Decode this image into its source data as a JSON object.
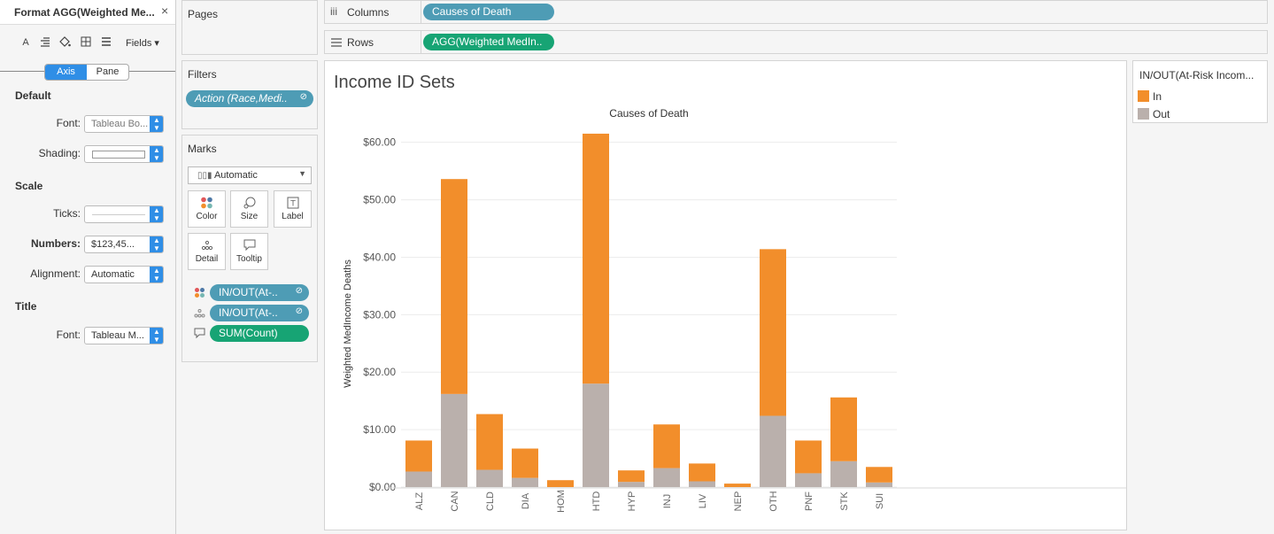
{
  "format_pane": {
    "title": "Format AGG(Weighted Me...",
    "close": "×",
    "toolbar_icons": [
      "font-icon",
      "align-icon",
      "shading-icon",
      "borders-icon",
      "lines-icon"
    ],
    "fields_label": "Fields ▾",
    "tabs": [
      "Axis",
      "Pane"
    ],
    "sections": {
      "default": "Default",
      "scale": "Scale",
      "title": "Title"
    },
    "font_label": "Font:",
    "font_value": "Tableau Bo...",
    "shading_label": "Shading:",
    "ticks_label": "Ticks:",
    "numbers_label": "Numbers:",
    "numbers_value": "$123,45...",
    "alignment_label": "Alignment:",
    "alignment_value": "Automatic",
    "title_font_label": "Font:",
    "title_font_value": "Tableau M..."
  },
  "pages": {
    "title": "Pages"
  },
  "filters": {
    "title": "Filters",
    "pill": "Action (Race,Medi..",
    "pill_icon": "⊘"
  },
  "marks": {
    "title": "Marks",
    "type": "Automatic",
    "buttons": [
      {
        "label": "Color",
        "icon": "color-icon"
      },
      {
        "label": "Size",
        "icon": "size-icon"
      },
      {
        "label": "Label",
        "icon": "label-icon"
      },
      {
        "label": "Detail",
        "icon": "detail-icon"
      },
      {
        "label": "Tooltip",
        "icon": "tooltip-icon"
      }
    ],
    "encodings": [
      {
        "label": "IN/OUT(At-..",
        "kind": "color"
      },
      {
        "label": "IN/OUT(At-..",
        "kind": "detail"
      },
      {
        "label": "SUM(Count)",
        "kind": "tooltip"
      }
    ]
  },
  "shelves": {
    "columns_label": "Columns",
    "columns_pill": "Causes of Death",
    "rows_label": "Rows",
    "rows_pill": "AGG(Weighted MedIn.."
  },
  "view": {
    "title": "Income ID Sets"
  },
  "legend": {
    "title": "IN/OUT(At-Risk Incom...",
    "items": [
      {
        "label": "In",
        "color": "#f28e2b"
      },
      {
        "label": "Out",
        "color": "#bab0ac"
      }
    ]
  },
  "chart_data": {
    "type": "bar",
    "stacked": true,
    "title": "Causes of Death",
    "xlabel": "",
    "ylabel": "Weighted MedIncome Deaths",
    "categories": [
      "ALZ",
      "CAN",
      "CLD",
      "DIA",
      "HOM",
      "HTD",
      "HYP",
      "INJ",
      "LIV",
      "NEP",
      "OTH",
      "PNF",
      "STK",
      "SUI"
    ],
    "series": [
      {
        "name": "Out",
        "color": "#bab0ac",
        "values": [
          2.7,
          16.2,
          3.0,
          1.6,
          0.0,
          18.0,
          0.9,
          3.3,
          1.0,
          0.0,
          12.4,
          2.4,
          4.5,
          0.8
        ]
      },
      {
        "name": "In",
        "color": "#f28e2b",
        "values": [
          5.4,
          37.4,
          9.7,
          5.1,
          1.2,
          43.5,
          2.0,
          7.6,
          3.1,
          0.6,
          29.0,
          5.7,
          11.1,
          2.7
        ]
      }
    ],
    "ylim": [
      0,
      61.8
    ],
    "yticks": [
      0,
      10,
      20,
      30,
      40,
      50,
      60
    ],
    "ytick_labels": [
      "$0.00",
      "$10.00",
      "$20.00",
      "$30.00",
      "$40.00",
      "$50.00",
      "$60.00"
    ],
    "grid": true,
    "legend_position": "right"
  }
}
